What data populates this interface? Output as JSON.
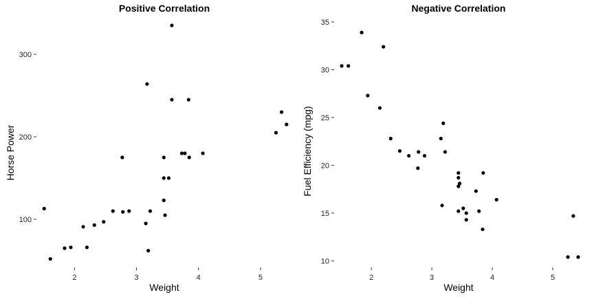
{
  "chart_data": [
    {
      "type": "scatter",
      "title": "Positive Correlation",
      "xlabel": "Weight",
      "ylabel": "Horse Power",
      "xticks": [
        2,
        3,
        4,
        5
      ],
      "yticks": [
        100,
        200,
        300
      ],
      "xlim": [
        1.43,
        5.5
      ],
      "ylim": [
        45,
        345
      ],
      "grid": false,
      "points": [
        {
          "x": 1.51,
          "y": 113
        },
        {
          "x": 1.61,
          "y": 52
        },
        {
          "x": 1.84,
          "y": 65
        },
        {
          "x": 1.94,
          "y": 66
        },
        {
          "x": 2.14,
          "y": 91
        },
        {
          "x": 2.2,
          "y": 66
        },
        {
          "x": 2.32,
          "y": 93
        },
        {
          "x": 2.47,
          "y": 97
        },
        {
          "x": 2.62,
          "y": 110
        },
        {
          "x": 2.77,
          "y": 175
        },
        {
          "x": 2.78,
          "y": 109
        },
        {
          "x": 2.88,
          "y": 110
        },
        {
          "x": 3.15,
          "y": 95
        },
        {
          "x": 3.17,
          "y": 264
        },
        {
          "x": 3.19,
          "y": 62
        },
        {
          "x": 3.22,
          "y": 110
        },
        {
          "x": 3.44,
          "y": 175
        },
        {
          "x": 3.44,
          "y": 150
        },
        {
          "x": 3.44,
          "y": 123
        },
        {
          "x": 3.46,
          "y": 105
        },
        {
          "x": 3.52,
          "y": 150
        },
        {
          "x": 3.57,
          "y": 245
        },
        {
          "x": 3.57,
          "y": 335
        },
        {
          "x": 3.73,
          "y": 180
        },
        {
          "x": 3.78,
          "y": 180
        },
        {
          "x": 3.84,
          "y": 245
        },
        {
          "x": 3.85,
          "y": 175
        },
        {
          "x": 4.07,
          "y": 180
        },
        {
          "x": 5.25,
          "y": 205
        },
        {
          "x": 5.34,
          "y": 230
        },
        {
          "x": 5.42,
          "y": 215
        }
      ]
    },
    {
      "type": "scatter",
      "title": "Negative Correlation",
      "xlabel": "Weight",
      "ylabel": "Fuel Efficiency (mpg)",
      "xticks": [
        2,
        3,
        4,
        5
      ],
      "yticks": [
        10,
        15,
        20,
        25,
        30,
        35
      ],
      "xlim": [
        1.43,
        5.5
      ],
      "ylim": [
        9.6,
        35.5
      ],
      "grid": false,
      "points": [
        {
          "x": 1.51,
          "y": 30.4
        },
        {
          "x": 1.62,
          "y": 30.4
        },
        {
          "x": 1.84,
          "y": 33.9
        },
        {
          "x": 1.94,
          "y": 27.3
        },
        {
          "x": 2.14,
          "y": 26.0
        },
        {
          "x": 2.2,
          "y": 32.4
        },
        {
          "x": 2.32,
          "y": 22.8
        },
        {
          "x": 2.47,
          "y": 21.5
        },
        {
          "x": 2.62,
          "y": 21.0
        },
        {
          "x": 2.77,
          "y": 19.7
        },
        {
          "x": 2.78,
          "y": 21.4
        },
        {
          "x": 2.88,
          "y": 21.0
        },
        {
          "x": 3.15,
          "y": 22.8
        },
        {
          "x": 3.17,
          "y": 15.8
        },
        {
          "x": 3.19,
          "y": 24.4
        },
        {
          "x": 3.22,
          "y": 21.4
        },
        {
          "x": 3.44,
          "y": 19.2
        },
        {
          "x": 3.44,
          "y": 18.7
        },
        {
          "x": 3.44,
          "y": 17.8
        },
        {
          "x": 3.44,
          "y": 15.2
        },
        {
          "x": 3.46,
          "y": 18.1
        },
        {
          "x": 3.52,
          "y": 15.5
        },
        {
          "x": 3.57,
          "y": 14.3
        },
        {
          "x": 3.57,
          "y": 15.0
        },
        {
          "x": 3.73,
          "y": 17.3
        },
        {
          "x": 3.78,
          "y": 15.2
        },
        {
          "x": 3.84,
          "y": 13.3
        },
        {
          "x": 3.85,
          "y": 19.2
        },
        {
          "x": 4.07,
          "y": 16.4
        },
        {
          "x": 5.25,
          "y": 10.4
        },
        {
          "x": 5.34,
          "y": 14.7
        },
        {
          "x": 5.42,
          "y": 10.4
        }
      ]
    }
  ]
}
